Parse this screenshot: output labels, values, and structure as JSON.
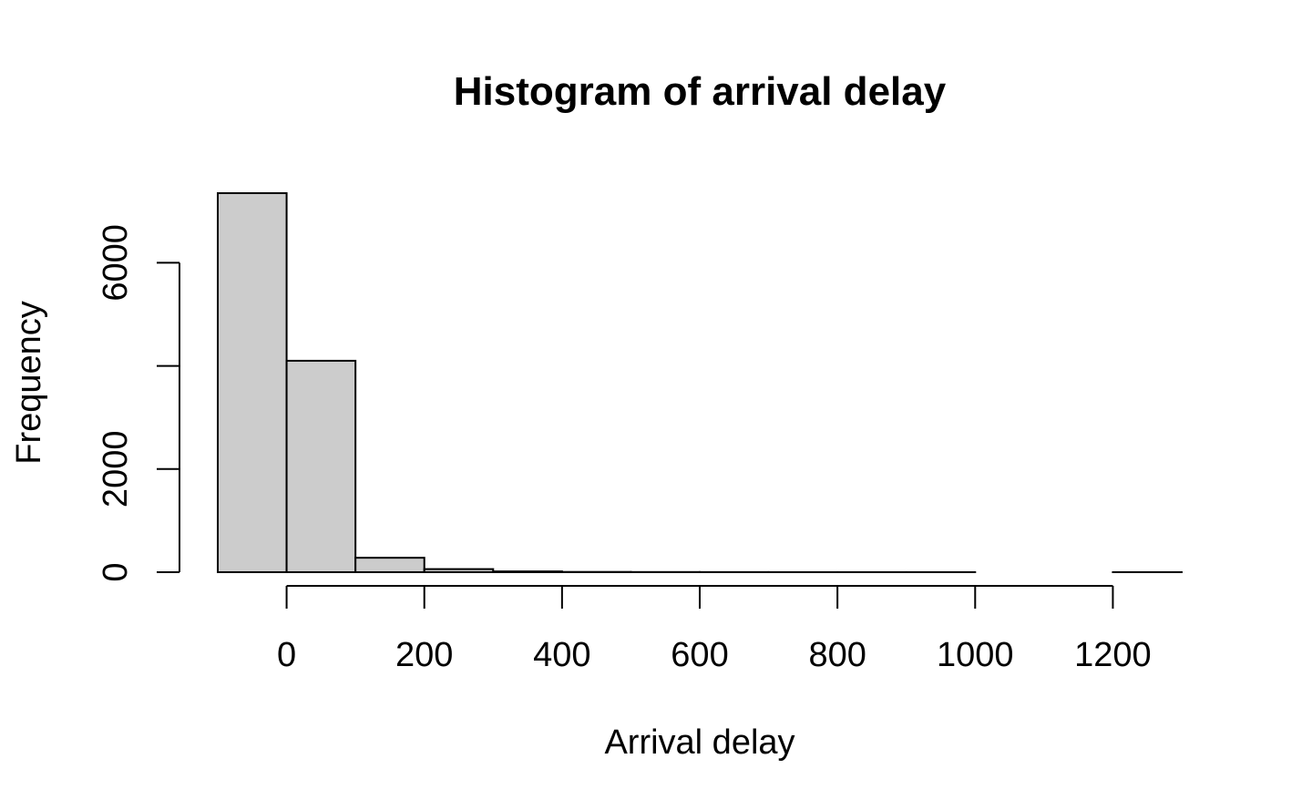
{
  "chart_data": {
    "type": "bar",
    "subtype": "histogram",
    "title": "Histogram of arrival delay",
    "xlabel": "Arrival delay",
    "ylabel": "Frequency",
    "bin_edges": [
      -100,
      0,
      100,
      200,
      300,
      400,
      500,
      600,
      700,
      800,
      900,
      1000,
      1100,
      1200,
      1300
    ],
    "values": [
      7350,
      4100,
      280,
      60,
      15,
      5,
      3,
      2,
      1,
      1,
      1,
      0,
      0,
      1
    ],
    "xlim": [
      -100,
      1300
    ],
    "ylim": [
      0,
      7350
    ],
    "x_ticks": [
      0,
      200,
      400,
      600,
      800,
      1000,
      1200
    ],
    "x_tick_labels": [
      "0",
      "200",
      "400",
      "600",
      "800",
      "1000",
      "1200"
    ],
    "y_ticks": [
      0,
      2000,
      4000,
      6000
    ],
    "y_tick_labels": [
      "0",
      "2000",
      "",
      "6000"
    ],
    "bar_fill": "#cccccc",
    "bar_stroke": "#000000",
    "grid": false,
    "legend": "none"
  }
}
